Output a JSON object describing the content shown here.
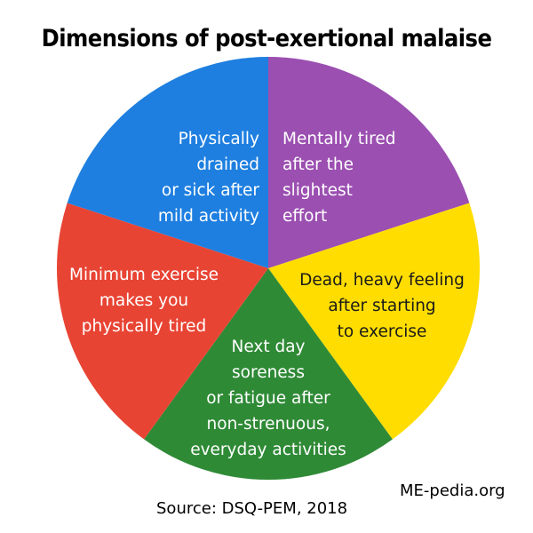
{
  "chart_data": {
    "type": "pie",
    "title": "Dimensions of post-exertional malaise",
    "slices": [
      {
        "label_lines": [
          "Mentally tired",
          "after the",
          "slightest",
          "effort"
        ],
        "value": 20,
        "color": "#9b4fb1",
        "text_color": "#ffffff"
      },
      {
        "label_lines": [
          "Dead, heavy feeling",
          "after starting",
          "to exercise"
        ],
        "value": 20,
        "color": "#ffdd00",
        "text_color": "#1a1a1a"
      },
      {
        "label_lines": [
          "Next day",
          "soreness",
          "or fatigue after",
          "non-strenuous,",
          "everyday activities"
        ],
        "value": 20,
        "color": "#2f8a36",
        "text_color": "#ffffff"
      },
      {
        "label_lines": [
          "Minimum exercise",
          "makes you",
          "physically tired"
        ],
        "value": 20,
        "color": "#e84434",
        "text_color": "#ffffff"
      },
      {
        "label_lines": [
          "Physically",
          "drained",
          "or sick after",
          "mild activity"
        ],
        "value": 20,
        "color": "#1e7fe0",
        "text_color": "#ffffff"
      }
    ],
    "legend": "none",
    "start_angle_deg": 0,
    "direction": "clockwise"
  },
  "footer": {
    "source": "Source: DSQ-PEM, 2018",
    "credit": "ME-pedia.org"
  }
}
